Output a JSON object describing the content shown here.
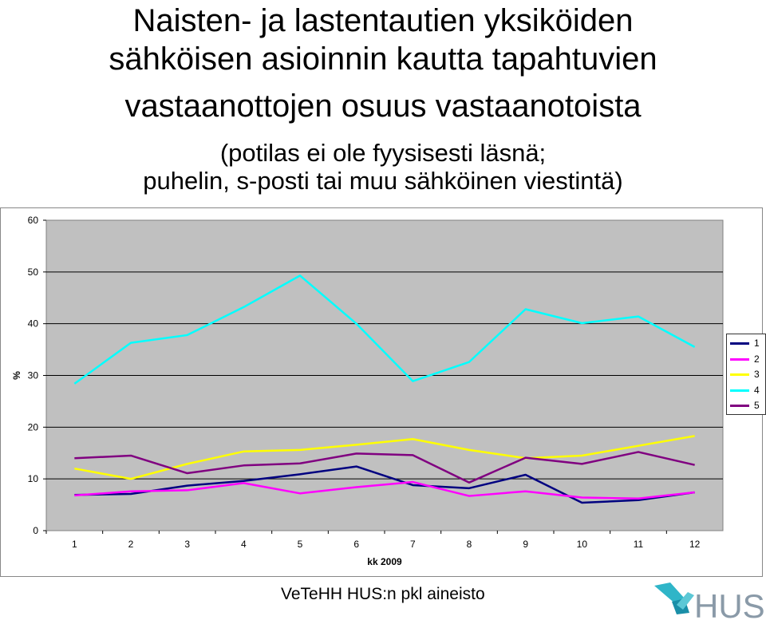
{
  "title": {
    "line1": "Naisten- ja lastentautien yksiköiden",
    "line2": "sähköisen asioinnin kautta tapahtuvien",
    "line3": "vastaanottojen osuus vastaanotoista",
    "sub1": "(potilas ei ole fyysisesti läsnä;",
    "sub2": "puhelin, s-posti tai muu sähköinen viestintä)"
  },
  "footer": "VeTeHH HUS:n pkl aineisto",
  "logo": {
    "text": "HUS",
    "icon": "hus-logo-icon"
  },
  "chart_data": {
    "type": "line",
    "title": "",
    "xlabel": "kk 2009",
    "ylabel": "%",
    "x": [
      1,
      2,
      3,
      4,
      5,
      6,
      7,
      8,
      9,
      10,
      11,
      12
    ],
    "x_tick_labels": [
      "1",
      "2",
      "3",
      "4",
      "5",
      "6",
      "7",
      "8",
      "9",
      "10",
      "11",
      "12"
    ],
    "ylim": [
      0,
      60
    ],
    "y_ticks": [
      0,
      10,
      20,
      30,
      40,
      50,
      60
    ],
    "y_tick_labels": [
      "0",
      "10",
      "20",
      "30",
      "40",
      "50",
      "60"
    ],
    "grid": "horizontal",
    "legend_position": "right",
    "plot_background": "#c0c0c0",
    "series": [
      {
        "name": "1",
        "color": "#000080",
        "values": [
          6.9,
          7.1,
          8.7,
          9.6,
          10.9,
          12.4,
          8.8,
          8.2,
          10.8,
          5.4,
          5.9,
          7.4
        ]
      },
      {
        "name": "2",
        "color": "#ff00ff",
        "values": [
          6.8,
          7.6,
          7.8,
          9.2,
          7.2,
          8.4,
          9.4,
          6.7,
          7.6,
          6.4,
          6.2,
          7.4
        ]
      },
      {
        "name": "3",
        "color": "#ffff00",
        "values": [
          12.0,
          10.0,
          12.9,
          15.3,
          15.6,
          16.6,
          17.7,
          15.6,
          14.0,
          14.5,
          16.4,
          18.3
        ]
      },
      {
        "name": "4",
        "color": "#00ffff",
        "values": [
          28.4,
          36.3,
          37.8,
          43.2,
          49.3,
          40.0,
          28.9,
          32.6,
          42.8,
          40.1,
          41.4,
          35.5
        ]
      },
      {
        "name": "5",
        "color": "#800080",
        "values": [
          14.0,
          14.5,
          11.1,
          12.6,
          13.0,
          14.9,
          14.6,
          9.3,
          14.1,
          12.9,
          15.2,
          12.7
        ]
      }
    ]
  }
}
